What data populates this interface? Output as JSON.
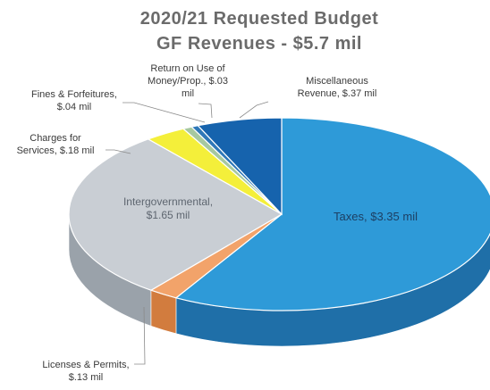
{
  "chart_data": {
    "type": "pie",
    "title": "2020/21 Requested Budget",
    "subtitle": "GF Revenues - $5.7 mil",
    "slices": [
      {
        "label": "Taxes, $3.35 mil",
        "value": 3.35,
        "color": "#2e9ad8",
        "side": "#1f6fa8"
      },
      {
        "label": "Licenses & Permits, $.13 mil",
        "value": 0.13,
        "color": "#f2a36a",
        "side": "#d27c3e"
      },
      {
        "label": "Intergovernmental, $1.65 mil",
        "value": 1.65,
        "color": "#c9ced4",
        "side": "#9aa2aa"
      },
      {
        "label": "Charges for Services, $.18 mil",
        "value": 0.18,
        "color": "#f4ef3a",
        "side": "#c9c21c"
      },
      {
        "label": "Fines & Forfeitures, $.04 mil",
        "value": 0.04,
        "color": "#a6c8a0",
        "side": "#7a9f75"
      },
      {
        "label": "Return on Use of Money/Prop., $.03 mil",
        "value": 0.03,
        "color": "#2f78b8",
        "side": "#1f5584"
      },
      {
        "label": "Miscellaneous Revenue, $.37 mil",
        "value": 0.37,
        "color": "#1663ad",
        "side": "#0d4378"
      }
    ]
  },
  "labels": {
    "taxes": "Taxes, $3.35 mil",
    "licenses": "Licenses & Permits,\n$.13 mil",
    "intergov": "Intergovernmental,\n$1.65 mil",
    "charges": "Charges for\nServices, $.18 mil",
    "fines": "Fines & Forfeitures,\n$.04 mil",
    "return": "Return on Use of\nMoney/Prop., $.03\nmil",
    "misc": "Miscellaneous\nRevenue, $.37 mil"
  }
}
